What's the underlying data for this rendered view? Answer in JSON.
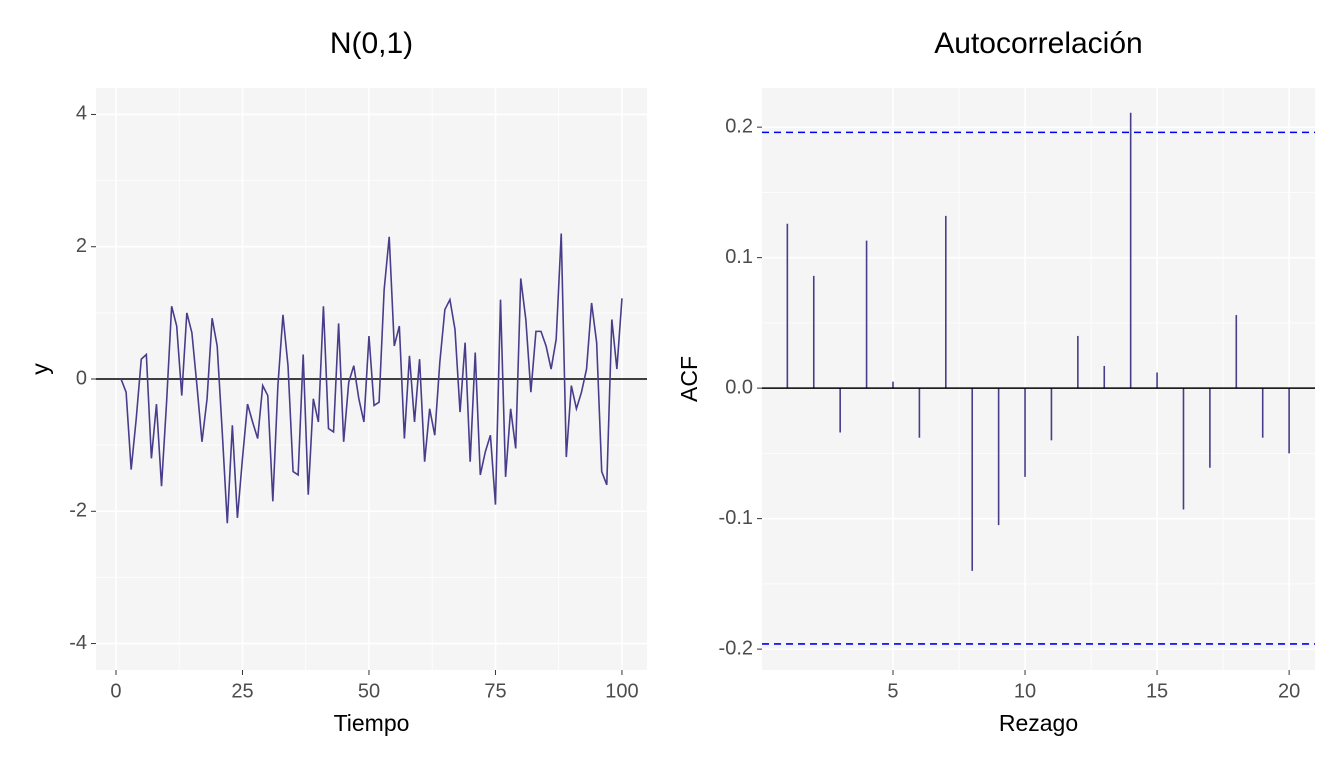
{
  "chart_data": [
    {
      "type": "line",
      "title": "N(0,1)",
      "x_label": "Tiempo",
      "y_label": "y",
      "color": "#483d8b",
      "x": [
        1,
        2,
        3,
        4,
        5,
        6,
        7,
        8,
        9,
        10,
        11,
        12,
        13,
        14,
        15,
        16,
        17,
        18,
        19,
        20,
        21,
        22,
        23,
        24,
        25,
        26,
        27,
        28,
        29,
        30,
        31,
        32,
        33,
        34,
        35,
        36,
        37,
        38,
        39,
        40,
        41,
        42,
        43,
        44,
        45,
        46,
        47,
        48,
        49,
        50,
        51,
        52,
        53,
        54,
        55,
        56,
        57,
        58,
        59,
        60,
        61,
        62,
        63,
        64,
        65,
        66,
        67,
        68,
        69,
        70,
        71,
        72,
        73,
        74,
        75,
        76,
        77,
        78,
        79,
        80,
        81,
        82,
        83,
        84,
        85,
        86,
        87,
        88,
        89,
        90,
        91,
        92,
        93,
        94,
        95,
        96,
        97,
        98,
        99,
        100
      ],
      "values": [
        0.0,
        -0.2,
        -1.37,
        -0.6,
        0.3,
        0.37,
        -1.2,
        -0.38,
        -1.62,
        -0.35,
        1.1,
        0.8,
        -0.25,
        1.0,
        0.7,
        -0.1,
        -0.95,
        -0.3,
        0.92,
        0.5,
        -0.8,
        -2.18,
        -0.7,
        -2.1,
        -1.2,
        -0.38,
        -0.65,
        -0.9,
        -0.1,
        -0.25,
        -1.85,
        -0.1,
        0.97,
        0.2,
        -1.4,
        -1.45,
        0.37,
        -1.75,
        -0.3,
        -0.65,
        1.1,
        -0.75,
        -0.8,
        0.84,
        -0.95,
        -0.05,
        0.2,
        -0.3,
        -0.65,
        0.65,
        -0.4,
        -0.35,
        1.35,
        2.15,
        0.5,
        0.8,
        -0.9,
        0.35,
        -0.65,
        0.3,
        -1.25,
        -0.45,
        -0.85,
        0.25,
        1.05,
        1.2,
        0.75,
        -0.5,
        0.55,
        -1.25,
        0.4,
        -1.45,
        -1.1,
        -0.85,
        -1.9,
        1.2,
        -1.48,
        -0.45,
        -1.05,
        1.52,
        0.9,
        -0.2,
        0.72,
        0.72,
        0.5,
        0.15,
        0.6,
        2.2,
        -1.18,
        -0.1,
        -0.45,
        -0.2,
        0.15,
        1.15,
        0.55,
        -1.4,
        -1.6,
        0.9,
        0.15,
        1.22
      ],
      "xlim": [
        -3.95,
        104.95
      ],
      "xticks": [
        0,
        25,
        50,
        75,
        100
      ],
      "ylim": [
        -4.4,
        4.4
      ],
      "yticks": [
        -4,
        -2,
        0,
        2,
        4
      ],
      "grid": true,
      "reference_lines": [
        {
          "value": 0,
          "color": "#000000",
          "dashed": false
        }
      ]
    },
    {
      "type": "acf",
      "title": "Autocorrelación",
      "x_label": "Rezago",
      "y_label": "ACF",
      "color": "#483d8b",
      "x": [
        1,
        2,
        3,
        4,
        5,
        6,
        7,
        8,
        9,
        10,
        11,
        12,
        13,
        14,
        15,
        16,
        17,
        18,
        19,
        20
      ],
      "values": [
        0.126,
        0.086,
        -0.034,
        0.113,
        0.005,
        -0.038,
        0.132,
        -0.14,
        -0.105,
        -0.068,
        -0.04,
        0.04,
        0.017,
        0.211,
        0.012,
        -0.093,
        -0.061,
        0.056,
        -0.038,
        -0.05
      ],
      "xlim": [
        0.04,
        20.98
      ],
      "xticks": [
        5,
        10,
        15,
        20
      ],
      "ylim": [
        -0.216,
        0.23
      ],
      "yticks": [
        -0.2,
        -0.1,
        {
          "value": 0,
          "label": "0.0"
        },
        0.1,
        0.2
      ],
      "grid": true,
      "reference_lines": [
        {
          "value": 0,
          "color": "#000000",
          "dashed": false
        },
        {
          "value": 0.196,
          "color": "#0000ff",
          "dashed": true
        },
        {
          "value": -0.196,
          "color": "#0000ff",
          "dashed": true
        }
      ]
    }
  ]
}
